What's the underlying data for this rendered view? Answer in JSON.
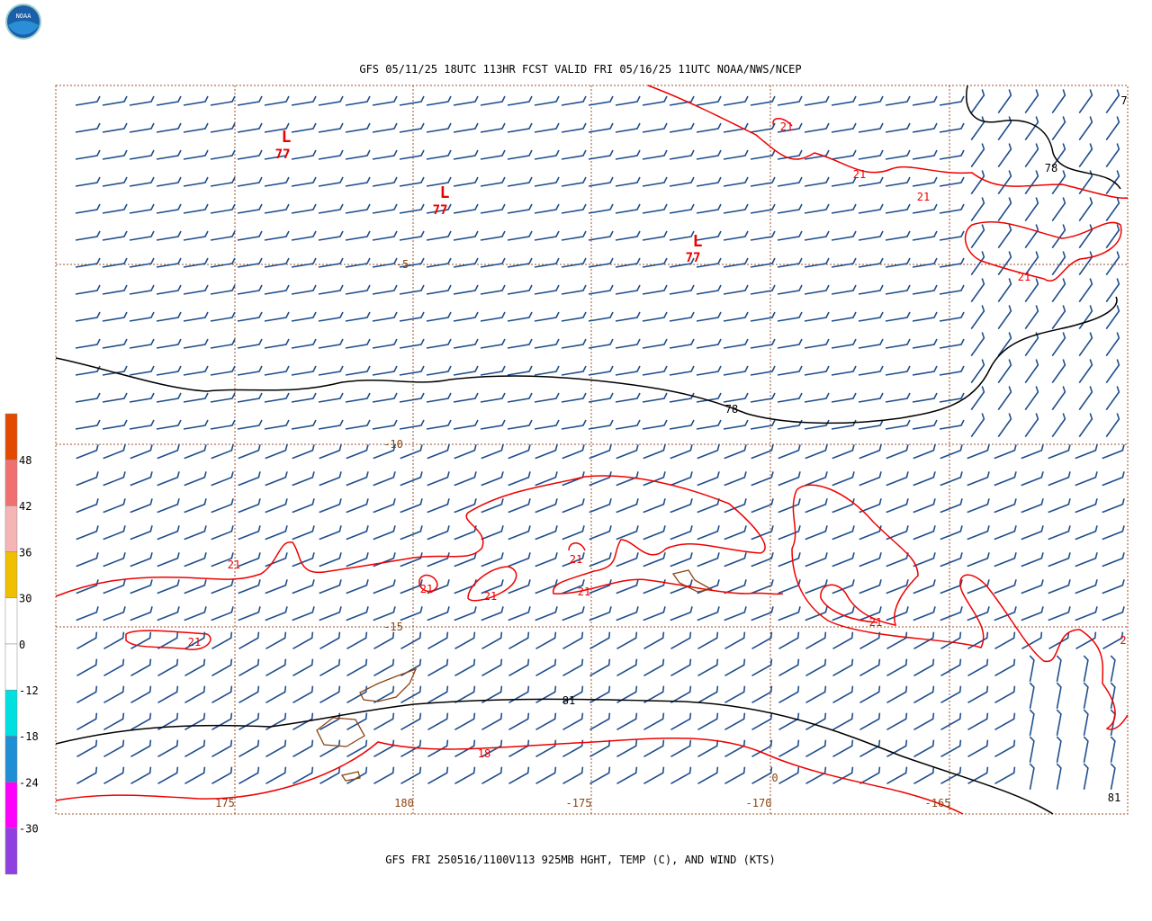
{
  "logo": "NOAA",
  "title": "GFS 05/11/25 18UTC 113HR FCST VALID FRI 05/16/25 11UTC NOAA/NWS/NCEP",
  "footer": "GFS FRI 250516/1100V113 925MB HGHT, TEMP (C), AND WIND (KTS)",
  "colorbar": {
    "labels": [
      48,
      42,
      36,
      30,
      0,
      -12,
      -18,
      -24,
      -30
    ]
  },
  "map": {
    "lat_labels": [
      -5,
      -10,
      -15
    ],
    "lon_labels": [
      175,
      180,
      -175,
      -170,
      -165
    ],
    "lows": [
      {
        "symbol": "L",
        "value": 77
      },
      {
        "symbol": "L",
        "value": 77
      },
      {
        "symbol": "L",
        "value": 77
      }
    ],
    "height_labels": [
      78,
      78,
      81,
      81,
      7
    ],
    "temp_labels": [
      21,
      21,
      21,
      21,
      21,
      21,
      21,
      21,
      21,
      21,
      21,
      18,
      2,
      0
    ]
  }
}
